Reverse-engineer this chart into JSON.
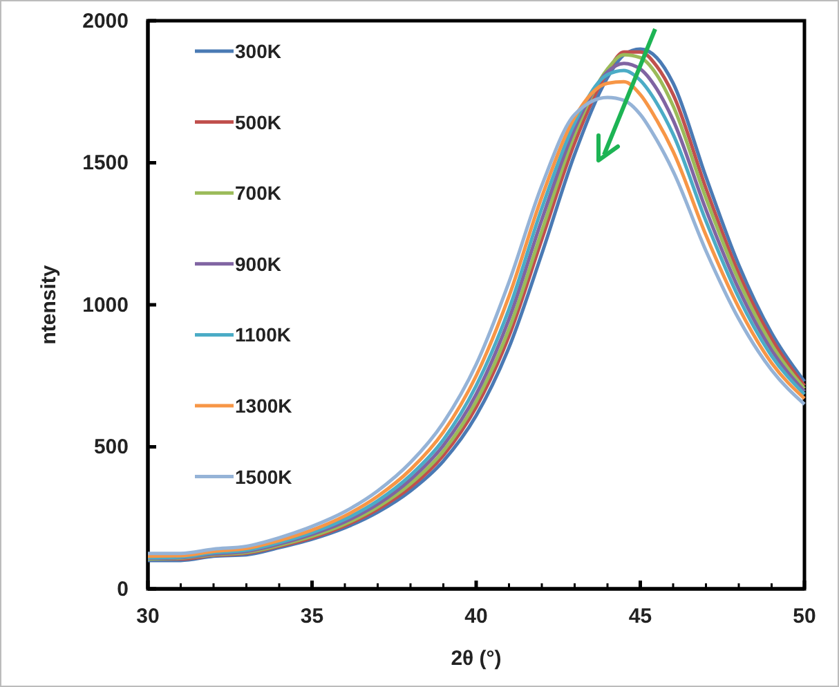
{
  "chart_data": {
    "type": "line",
    "xlabel": "2θ  (°)",
    "ylabel": "ntensity",
    "xlim": [
      30,
      50
    ],
    "xticks": [
      30,
      35,
      40,
      45,
      50
    ],
    "ylim": [
      0,
      2000
    ],
    "yticks": [
      0,
      500,
      1000,
      1500,
      2000
    ],
    "grid": false,
    "legend": "top left",
    "marker": "none",
    "line_style": "solid",
    "x": [
      30,
      31,
      32,
      33,
      34,
      35,
      36,
      37,
      38,
      39,
      40,
      41,
      42,
      43,
      44,
      44.5,
      45,
      45.5,
      46,
      47,
      48,
      49,
      50
    ],
    "series": [
      {
        "name": "300K",
        "color": "#4a7ab4",
        "values": [
          100,
          100,
          115,
          120,
          145,
          175,
          215,
          270,
          345,
          450,
          610,
          850,
          1180,
          1530,
          1800,
          1880,
          1900,
          1870,
          1780,
          1450,
          1140,
          900,
          730
        ]
      },
      {
        "name": "500K",
        "color": "#c0504d",
        "values": [
          105,
          105,
          118,
          125,
          150,
          180,
          222,
          280,
          358,
          470,
          640,
          890,
          1230,
          1570,
          1820,
          1890,
          1890,
          1840,
          1740,
          1410,
          1110,
          880,
          715
        ]
      },
      {
        "name": "700K",
        "color": "#9bbb59",
        "values": [
          105,
          108,
          120,
          128,
          153,
          185,
          228,
          288,
          370,
          485,
          660,
          915,
          1260,
          1600,
          1830,
          1880,
          1870,
          1810,
          1700,
          1375,
          1085,
          860,
          705
        ]
      },
      {
        "name": "900K",
        "color": "#8064a2",
        "values": [
          108,
          110,
          123,
          132,
          158,
          192,
          236,
          298,
          385,
          505,
          685,
          950,
          1300,
          1620,
          1820,
          1850,
          1830,
          1760,
          1650,
          1335,
          1055,
          840,
          695
        ]
      },
      {
        "name": "1100K",
        "color": "#4bacc6",
        "values": [
          110,
          112,
          127,
          136,
          163,
          198,
          245,
          310,
          400,
          525,
          715,
          985,
          1340,
          1640,
          1810,
          1825,
          1790,
          1710,
          1600,
          1295,
          1025,
          820,
          685
        ]
      },
      {
        "name": "1300K",
        "color": "#f79646",
        "values": [
          115,
          117,
          132,
          142,
          170,
          207,
          257,
          326,
          420,
          552,
          750,
          1030,
          1380,
          1660,
          1780,
          1785,
          1740,
          1650,
          1540,
          1245,
          990,
          795,
          670
        ]
      },
      {
        "name": "1500K",
        "color": "#95b3d7",
        "values": [
          125,
          125,
          140,
          150,
          180,
          220,
          272,
          345,
          445,
          585,
          790,
          1080,
          1420,
          1670,
          1730,
          1720,
          1670,
          1580,
          1470,
          1190,
          950,
          770,
          650
        ]
      }
    ]
  }
}
